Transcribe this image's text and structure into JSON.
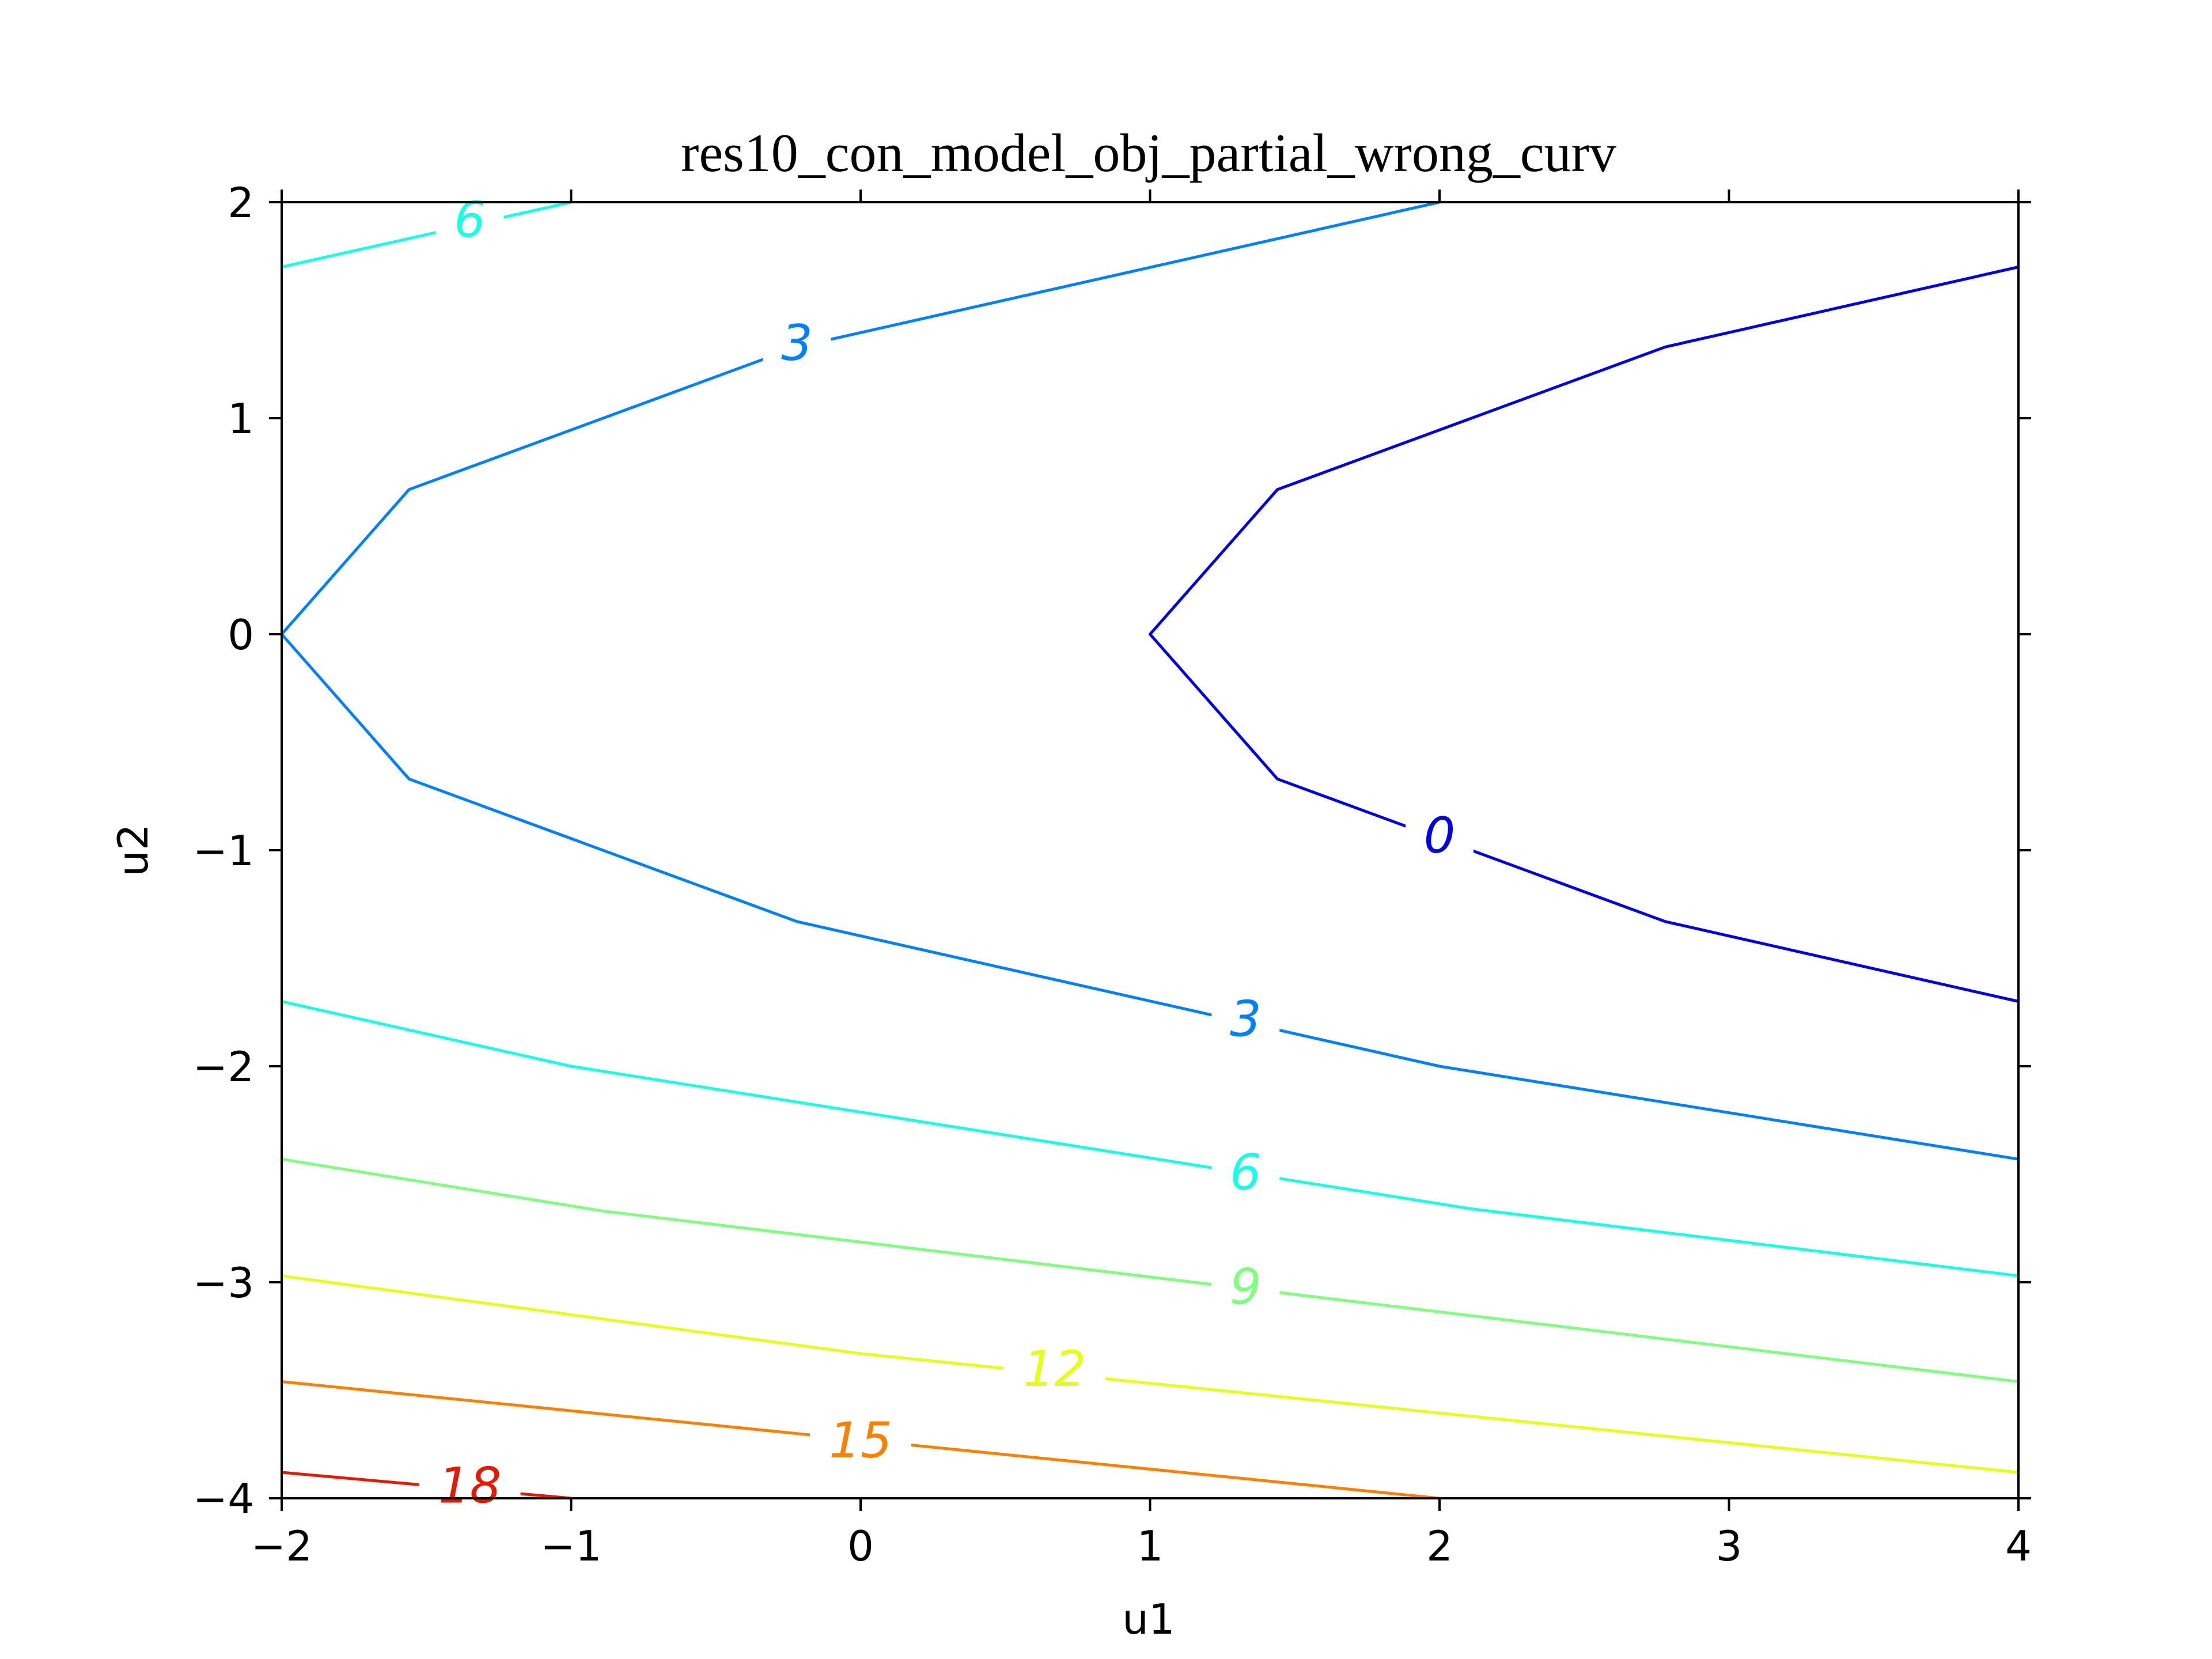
{
  "chart_data": {
    "type": "contour",
    "title": "res10_con_model_obj_partial_wrong_curv",
    "xlabel": "u1",
    "ylabel": "u2",
    "xlim": [
      -2,
      4
    ],
    "ylim": [
      -4,
      2
    ],
    "xticks": [
      -2,
      -1,
      0,
      1,
      2,
      3,
      4
    ],
    "xtick_labels": [
      "−2",
      "−1",
      "0",
      "1",
      "2",
      "3",
      "4"
    ],
    "yticks": [
      2,
      1,
      0,
      -1,
      -2,
      -3,
      -4
    ],
    "ytick_labels": [
      "2",
      "1",
      "0",
      "−1",
      "−2",
      "−3",
      "−4"
    ],
    "colormap": "jet",
    "levels": [
      {
        "level": 0,
        "label": "0",
        "color": "#0000e6",
        "segments": [
          [
            [
              4,
              1.7
            ],
            [
              2.78,
              1.33
            ],
            [
              1.44,
              0.67
            ],
            [
              1.0,
              0.0
            ],
            [
              1.44,
              -0.67
            ],
            [
              2.78,
              -1.33
            ],
            [
              4,
              -1.7
            ]
          ]
        ],
        "labels_at": [
          [
            2.0,
            -0.93
          ]
        ]
      },
      {
        "level": 3,
        "label": "3",
        "color": "#0080ff",
        "segments": [
          [
            [
              2,
              2.0
            ],
            [
              -0.22,
              1.33
            ],
            [
              -1.56,
              0.67
            ],
            [
              -2.0,
              0.0
            ],
            [
              -1.56,
              -0.67
            ],
            [
              -0.22,
              -1.33
            ],
            [
              2.0,
              -2.0
            ],
            [
              4,
              -2.43
            ]
          ]
        ],
        "labels_at": [
          [
            -0.22,
            1.35
          ],
          [
            1.33,
            -1.78
          ]
        ]
      },
      {
        "level": 6,
        "label": "6",
        "color": "#19ffe6",
        "segments": [
          [
            [
              -2,
              1.7
            ],
            [
              -1,
              2.0
            ]
          ],
          [
            [
              -2,
              -1.7
            ],
            [
              -1,
              -2.0
            ],
            [
              2.11,
              -2.66
            ],
            [
              4,
              -2.97
            ]
          ]
        ],
        "labels_at": [
          [
            -1.35,
            1.92
          ],
          [
            1.33,
            -2.49
          ]
        ]
      },
      {
        "level": 9,
        "label": "9",
        "color": "#80ff80",
        "segments": [
          [
            [
              -2,
              -2.43
            ],
            [
              -0.89,
              -2.67
            ],
            [
              4,
              -3.46
            ]
          ]
        ],
        "labels_at": [
          [
            1.33,
            -3.02
          ]
        ]
      },
      {
        "level": 12,
        "label": "12",
        "color": "#e6ff19",
        "segments": [
          [
            [
              -2,
              -2.97
            ],
            [
              0.0,
              -3.33
            ],
            [
              4,
              -3.88
            ]
          ]
        ],
        "labels_at": [
          [
            0.67,
            -3.4
          ]
        ]
      },
      {
        "level": 15,
        "label": "15",
        "color": "#ff8000",
        "segments": [
          [
            [
              -2,
              -3.46
            ],
            [
              2,
              -4.0
            ]
          ]
        ],
        "labels_at": [
          [
            0.0,
            -3.73
          ]
        ]
      },
      {
        "level": 18,
        "label": "18",
        "color": "#e61900",
        "segments": [
          [
            [
              -2,
              -3.88
            ],
            [
              -1,
              -4.0
            ]
          ]
        ],
        "labels_at": [
          [
            -1.35,
            -3.94
          ]
        ]
      }
    ]
  }
}
